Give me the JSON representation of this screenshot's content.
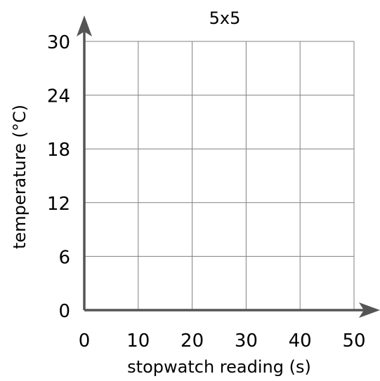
{
  "chart_data": {
    "type": "scatter",
    "title": "5x5",
    "xlabel": "stopwatch reading (s)",
    "ylabel": "temperature (°C)",
    "xlim": [
      0,
      50
    ],
    "ylim": [
      0,
      30
    ],
    "x_ticks": [
      0,
      10,
      20,
      30,
      40,
      50
    ],
    "y_ticks": [
      0,
      6,
      12,
      18,
      24,
      30
    ],
    "x_tick_labels": [
      "0",
      "10",
      "20",
      "30",
      "40",
      "50"
    ],
    "y_tick_labels": [
      "0",
      "6",
      "12",
      "18",
      "24",
      "30"
    ],
    "grid": true,
    "series": [],
    "colors": {
      "grid": "#808080",
      "axis": "#555555"
    }
  }
}
